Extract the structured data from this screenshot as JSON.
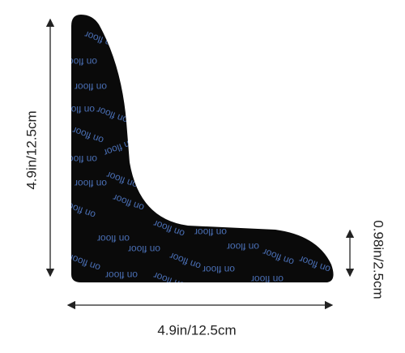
{
  "diagram": {
    "pattern_text": "on floor",
    "height_label": "4.9in/12.5cm",
    "thickness_label": "0.98in/2.5cm",
    "width_label": "4.9in/12.5cm"
  }
}
